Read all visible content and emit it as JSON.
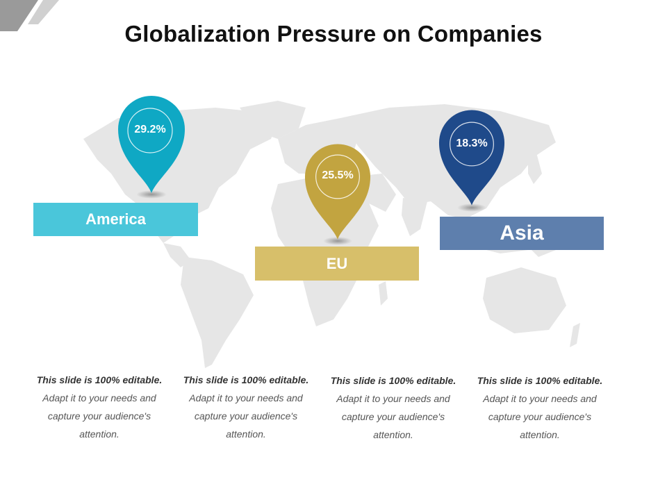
{
  "title": "Globalization Pressure on Companies",
  "colors": {
    "america_pin": "#0FA8C4",
    "america_box": "#4AC6DA",
    "eu_pin": "#C2A440",
    "eu_box": "#D7BF6A",
    "asia_pin": "#1F4A8A",
    "asia_box": "#5E7FAD",
    "map": "#E6E6E6"
  },
  "regions": [
    {
      "name": "America",
      "value": "29.2%"
    },
    {
      "name": "EU",
      "value": "25.5%"
    },
    {
      "name": "Asia",
      "value": "18.3%"
    }
  ],
  "descriptions": [
    {
      "bold": "This slide is 100% editable.",
      "text": " Adapt it to your needs and capture your audience's attention."
    },
    {
      "bold": "This slide is 100% editable.",
      "text": " Adapt it to your needs and capture your audience's attention."
    },
    {
      "bold": "This slide is 100% editable.",
      "text": " Adapt it to your needs and capture your audience's attention."
    },
    {
      "bold": "This slide is 100% editable.",
      "text": " Adapt it to your needs and capture your audience's attention."
    }
  ]
}
